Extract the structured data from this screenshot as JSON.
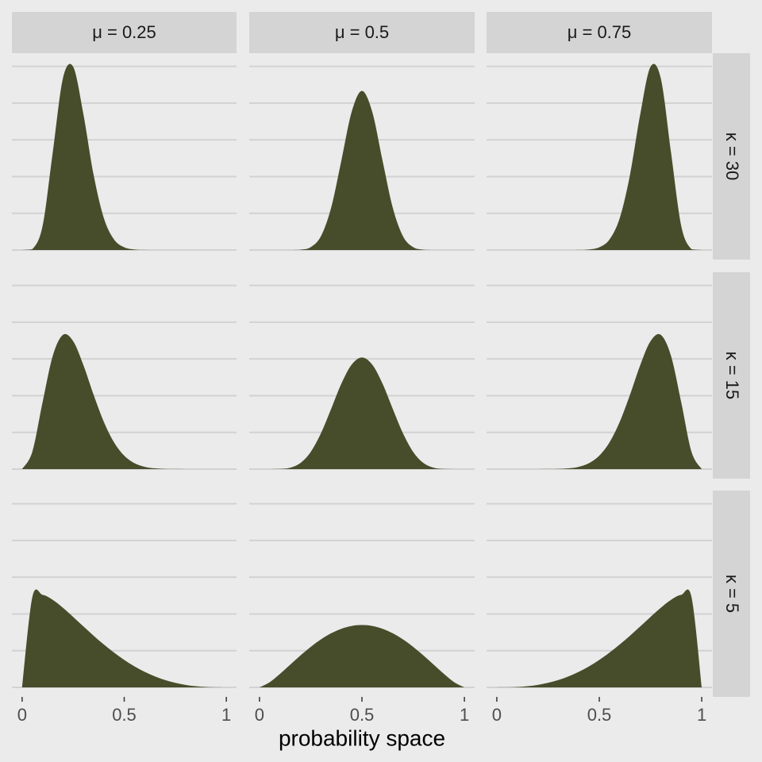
{
  "chart_data": {
    "type": "area",
    "x_label": "probability space",
    "columns": [
      "μ = 0.25",
      "μ = 0.5",
      "μ = 0.75"
    ],
    "rows": [
      "κ = 30",
      "κ = 15",
      "κ = 5"
    ],
    "x": [
      0,
      0.05,
      0.1,
      0.15,
      0.2,
      0.25,
      0.3,
      0.35,
      0.4,
      0.45,
      0.5,
      0.55,
      0.6,
      0.65,
      0.7,
      0.75,
      0.8,
      0.85,
      0.9,
      0.95,
      1
    ],
    "xlim": [
      -0.05,
      1.05
    ],
    "xticks": [
      0,
      0.5,
      1
    ],
    "ylim": [
      -0.26,
      5.36
    ],
    "yticks": [
      0,
      1,
      2,
      3,
      4,
      5
    ],
    "grid": true,
    "color": "#474d2b",
    "panels": [
      [
        [
          0,
          0.023,
          0.651,
          2.657,
          4.68,
          4.99,
          3.7,
          2.05,
          0.873,
          0.289,
          0.074,
          0.014,
          0.002,
          0,
          0,
          0,
          0,
          0,
          0,
          0,
          0
        ],
        [
          0,
          0,
          0,
          0.0003,
          0.0084,
          0.077,
          0.377,
          1.158,
          2.447,
          3.766,
          4.334,
          3.766,
          2.447,
          1.158,
          0.377,
          0.077,
          0.0084,
          0.0003,
          0,
          0,
          0
        ],
        [
          0,
          0,
          0,
          0,
          0,
          0,
          0,
          0,
          0.002,
          0.014,
          0.074,
          0.289,
          0.873,
          2.05,
          3.7,
          4.99,
          4.68,
          2.657,
          0.651,
          0.023,
          0
        ]
      ],
      [
        [
          0,
          0.47,
          1.816,
          3.083,
          3.655,
          3.483,
          2.835,
          2.026,
          1.288,
          0.73,
          0.367,
          0.162,
          0.062,
          0.02,
          0.005,
          0.001,
          0,
          0,
          0,
          0,
          0
        ],
        [
          0,
          0,
          0.004,
          0.038,
          0.167,
          0.468,
          0.978,
          1.646,
          2.331,
          2.847,
          3.04,
          2.847,
          2.331,
          1.646,
          0.978,
          0.468,
          0.167,
          0.038,
          0.004,
          0,
          0
        ],
        [
          0,
          0,
          0,
          0,
          0,
          0.001,
          0.005,
          0.02,
          0.062,
          0.162,
          0.367,
          0.73,
          1.288,
          2.026,
          2.835,
          3.483,
          3.655,
          3.083,
          1.816,
          0.47,
          0
        ]
      ],
      [
        [
          0,
          2.458,
          2.519,
          2.382,
          2.167,
          1.919,
          1.661,
          1.408,
          1.168,
          0.947,
          0.748,
          0.573,
          0.424,
          0.3,
          0.2,
          0.123,
          0.068,
          0.031,
          0.01,
          0.002,
          0
        ],
        [
          0,
          0.141,
          0.367,
          0.618,
          0.869,
          1.103,
          1.307,
          1.474,
          1.597,
          1.672,
          1.698,
          1.672,
          1.597,
          1.474,
          1.307,
          1.103,
          0.869,
          0.618,
          0.367,
          0.141,
          0
        ],
        [
          0,
          0.002,
          0.01,
          0.031,
          0.068,
          0.123,
          0.2,
          0.3,
          0.424,
          0.573,
          0.748,
          0.947,
          1.168,
          1.408,
          1.661,
          1.919,
          2.167,
          2.382,
          2.519,
          2.458,
          0
        ]
      ]
    ]
  }
}
